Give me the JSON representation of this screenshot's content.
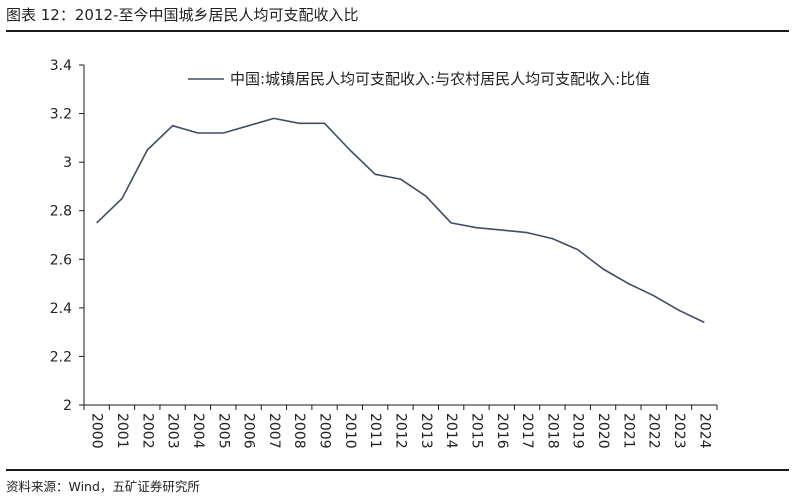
{
  "header": {
    "title": "图表 12：2012-至今中国城乡居民人均可支配收入比"
  },
  "footer": {
    "source": "资料来源：Wind，五矿证券研究所"
  },
  "chart_data": {
    "type": "line",
    "title": "",
    "xlabel": "",
    "ylabel": "",
    "x": [
      "2000",
      "2001",
      "2002",
      "2003",
      "2004",
      "2005",
      "2006",
      "2007",
      "2008",
      "2009",
      "2010",
      "2011",
      "2012",
      "2013",
      "2014",
      "2015",
      "2016",
      "2017",
      "2018",
      "2019",
      "2020",
      "2021",
      "2022",
      "2023",
      "2024"
    ],
    "series": [
      {
        "name": "中国:城镇居民人均可支配收入:与农村居民人均可支配收入:比值",
        "values": [
          2.75,
          2.85,
          3.05,
          3.15,
          3.12,
          3.12,
          3.15,
          3.18,
          3.16,
          3.16,
          3.05,
          2.95,
          2.93,
          2.86,
          2.75,
          2.73,
          2.72,
          2.71,
          2.685,
          2.64,
          2.56,
          2.5,
          2.45,
          2.39,
          2.34
        ],
        "color": "#3f4d63"
      }
    ],
    "y_ticks": [
      "2",
      "2.2",
      "2.4",
      "2.6",
      "2.8",
      "3",
      "3.2",
      "3.4"
    ],
    "ylim": [
      2,
      3.4
    ],
    "grid": false,
    "legend_position": "top-right"
  }
}
